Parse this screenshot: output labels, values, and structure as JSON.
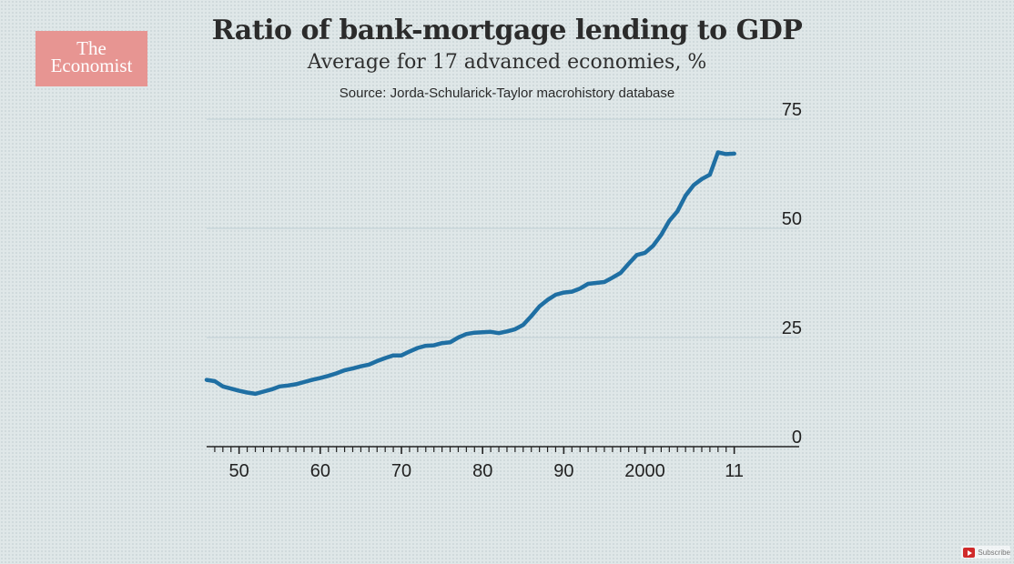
{
  "logo": {
    "line1": "The",
    "line2": "Economist"
  },
  "header": {
    "title": "Ratio of bank-mortgage lending to GDP",
    "subtitle": "Average for 17 advanced economies, %",
    "source": "Source: Jorda-Schularick-Taylor macrohistory database"
  },
  "subscribe": {
    "label": "Subscribe",
    "icon": "play-icon"
  },
  "colors": {
    "line": "#1f6fa3",
    "grid": "#bfcfd3",
    "axis": "#222222",
    "logo_bg": "#e79592"
  },
  "chart_data": {
    "type": "line",
    "title": "Ratio of bank-mortgage lending to GDP",
    "subtitle": "Average for 17 advanced economies, %",
    "ylim": [
      0,
      75
    ],
    "yticks": [
      0,
      25,
      50,
      75
    ],
    "ytick_labels": [
      "0",
      "25",
      "50",
      "75"
    ],
    "xlim": [
      1946,
      2019
    ],
    "xticks": [
      1950,
      1960,
      1970,
      1980,
      1990,
      2000,
      2011
    ],
    "xtick_labels": [
      "50",
      "60",
      "70",
      "80",
      "90",
      "2000",
      "11"
    ],
    "grid": true,
    "y_axis_side": "right",
    "series": [
      {
        "x": [
          1946,
          1947,
          1948,
          1949,
          1950,
          1951,
          1952,
          1953,
          1954,
          1955,
          1956,
          1957,
          1958,
          1959,
          1960,
          1961,
          1962,
          1963,
          1964,
          1965,
          1966,
          1967,
          1968,
          1969,
          1970,
          1971,
          1972,
          1973,
          1974,
          1975,
          1976,
          1977,
          1978,
          1979,
          1980,
          1981,
          1982,
          1983,
          1984,
          1985,
          1986,
          1987,
          1988,
          1989,
          1990,
          1991,
          1992,
          1993,
          1994,
          1995,
          1996,
          1997,
          1998,
          1999,
          2000,
          2001,
          2002,
          2003,
          2004,
          2005,
          2006,
          2007,
          2008,
          2009,
          2010,
          2011
        ],
        "values": [
          15.3,
          15.0,
          13.8,
          13.3,
          12.8,
          12.4,
          12.1,
          12.6,
          13.1,
          13.8,
          14.0,
          14.3,
          14.8,
          15.3,
          15.7,
          16.2,
          16.8,
          17.5,
          17.9,
          18.4,
          18.8,
          19.6,
          20.3,
          20.9,
          20.9,
          21.8,
          22.6,
          23.1,
          23.2,
          23.7,
          23.9,
          25.0,
          25.8,
          26.1,
          26.2,
          26.3,
          26.0,
          26.4,
          26.9,
          27.9,
          29.9,
          32.1,
          33.6,
          34.8,
          35.3,
          35.5,
          36.2,
          37.3,
          37.5,
          37.7,
          38.7,
          39.8,
          41.9,
          43.9,
          44.4,
          46.0,
          48.5,
          51.7,
          53.9,
          57.5,
          59.9,
          61.3,
          62.3,
          67.4,
          67.0,
          67.1
        ]
      }
    ]
  }
}
